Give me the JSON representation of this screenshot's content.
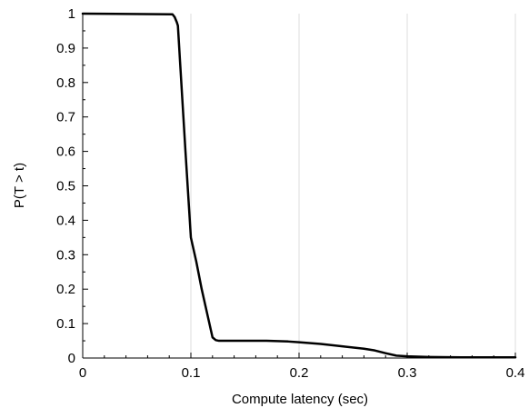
{
  "chart_data": {
    "type": "line",
    "title": "",
    "xlabel": "Compute latency (sec)",
    "ylabel": "P(T > t)",
    "xlim": [
      0,
      0.4
    ],
    "ylim": [
      0,
      1
    ],
    "grid": {
      "x": true,
      "y": false
    },
    "x_major_ticks": [
      0,
      0.1,
      0.2,
      0.3,
      0.4
    ],
    "x_tick_labels": [
      "0",
      "0.1",
      "0.2",
      "0.3",
      "0.4"
    ],
    "y_major_ticks": [
      0,
      0.1,
      0.2,
      0.3,
      0.4,
      0.5,
      0.6,
      0.7,
      0.8,
      0.9,
      1
    ],
    "y_tick_labels": [
      "0",
      "0.1",
      "0.2",
      "0.3",
      "0.4",
      "0.5",
      "0.6",
      "0.7",
      "0.8",
      "0.9",
      "1"
    ],
    "colors": {
      "line": "#000000",
      "grid": "#dddddd",
      "axis": "#000000"
    },
    "series": [
      {
        "x": [
          0,
          0.083,
          0.085,
          0.087,
          0.088,
          0.09,
          0.095,
          0.1,
          0.105,
          0.11,
          0.115,
          0.12,
          0.123,
          0.126,
          0.13,
          0.15,
          0.17,
          0.19,
          0.2,
          0.22,
          0.24,
          0.26,
          0.27,
          0.28,
          0.29,
          0.3,
          0.32,
          0.35,
          0.4
        ],
        "y": [
          1,
          0.998,
          0.99,
          0.975,
          0.965,
          0.86,
          0.6,
          0.35,
          0.28,
          0.2,
          0.13,
          0.06,
          0.052,
          0.05,
          0.05,
          0.05,
          0.05,
          0.048,
          0.046,
          0.041,
          0.034,
          0.027,
          0.022,
          0.014,
          0.007,
          0.005,
          0.003,
          0.002,
          0.002
        ]
      }
    ]
  }
}
